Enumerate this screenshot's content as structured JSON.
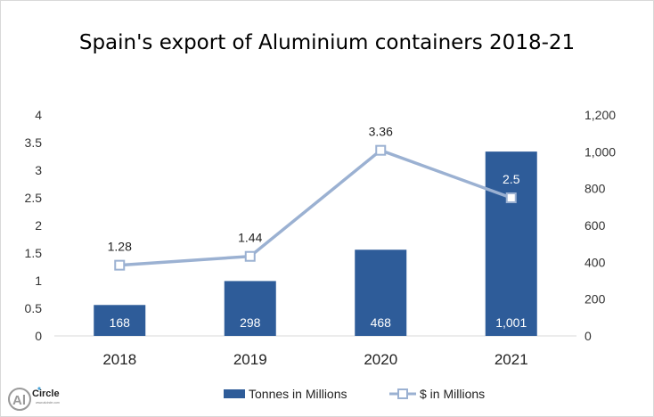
{
  "chart_data": {
    "type": "bar+line",
    "title": "Spain's export of Aluminium containers 2018-21",
    "categories": [
      "2018",
      "2019",
      "2020",
      "2021"
    ],
    "series": [
      {
        "name": "Tonnes in Millions",
        "type": "bar",
        "axis": "right",
        "values": [
          168,
          298,
          468,
          1001
        ],
        "labels": [
          "168",
          "298",
          "468",
          "1,001"
        ],
        "color": "#2e5c99"
      },
      {
        "name": "$ in Millions",
        "type": "line",
        "axis": "left",
        "values": [
          1.28,
          1.44,
          3.36,
          2.5
        ],
        "labels": [
          "1.28",
          "1.44",
          "3.36",
          "2.5"
        ],
        "color": "#9bb1d2"
      }
    ],
    "left_axis": {
      "ylim": [
        0,
        4
      ],
      "ticks": [
        "0",
        "0.5",
        "1",
        "1.5",
        "2",
        "2.5",
        "3",
        "3.5",
        "4"
      ]
    },
    "right_axis": {
      "ylim": [
        0,
        1200
      ],
      "ticks": [
        "0",
        "200",
        "400",
        "600",
        "800",
        "1,000",
        "1,200"
      ]
    },
    "grid": false,
    "legend": "bottom"
  },
  "logo": {
    "text": "AlCircle"
  }
}
